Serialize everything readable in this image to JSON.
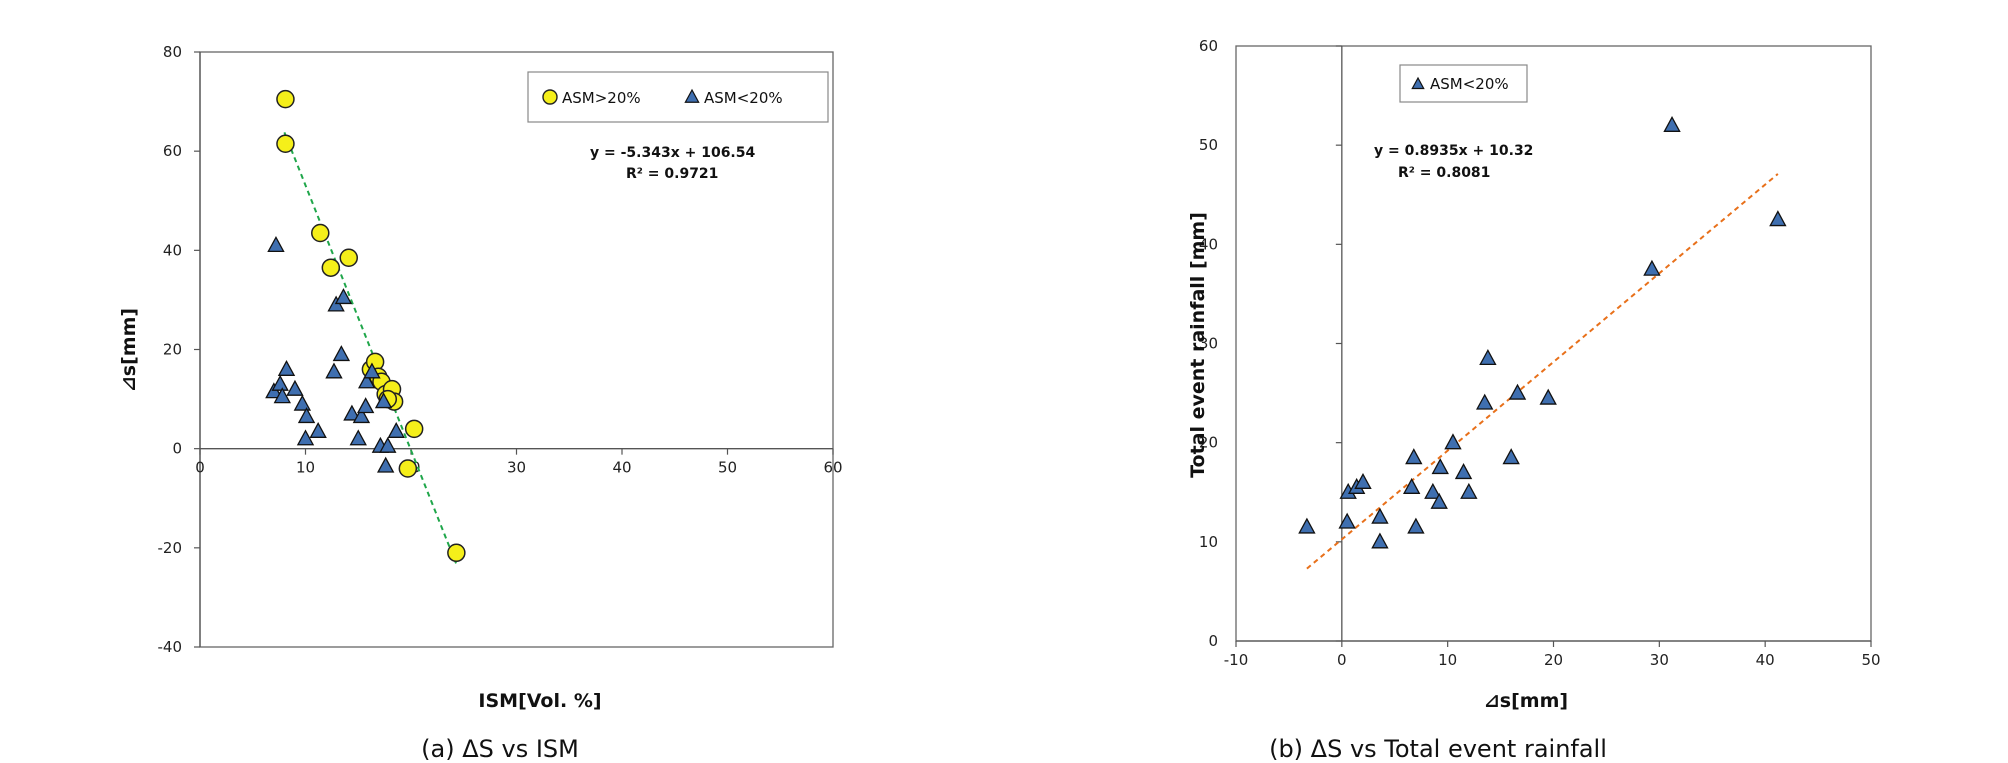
{
  "chart_data": [
    {
      "type": "scatter",
      "caption": "(a) ΔS vs ISM",
      "xlabel": "ISM[Vol. %]",
      "ylabel": "⊿s[mm]",
      "xlim": [
        0,
        60
      ],
      "ylim": [
        -40,
        80
      ],
      "xticks": [
        "0",
        "10",
        "20",
        "30",
        "40",
        "50",
        "60"
      ],
      "yticks": [
        "-40",
        "-20",
        "0",
        "20",
        "40",
        "60",
        "80"
      ],
      "legend": {
        "placement": "top-right",
        "entries": [
          "ASM>20%",
          "ASM<20%"
        ]
      },
      "equation": "y = -5.343x + 106.54",
      "r_squared": "R²   = 0.9721",
      "trendline": {
        "color": "#1fa64a",
        "x": [
          8,
          24.3
        ],
        "y": [
          63.8,
          -23.3
        ]
      },
      "series": [
        {
          "name": "ASM>20%",
          "marker": "circle",
          "color": "#f5ef1a",
          "x": [
            8.1,
            8.1,
            11.4,
            12.4,
            14.1,
            16.2,
            16.6,
            16.9,
            17.2,
            17.6,
            18.2,
            18.4,
            17.8,
            19.7,
            20.3,
            24.3
          ],
          "y": [
            70.5,
            61.5,
            43.5,
            36.5,
            38.5,
            16.0,
            17.5,
            14.5,
            13.5,
            11.0,
            12.0,
            9.5,
            10.0,
            -4.0,
            4.0,
            -21.0
          ]
        },
        {
          "name": "ASM<20%",
          "marker": "triangle",
          "color": "#3f6fb0",
          "x": [
            7.2,
            7.0,
            7.6,
            7.8,
            8.2,
            9.0,
            9.7,
            10.1,
            10.0,
            11.2,
            12.7,
            13.4,
            12.9,
            13.6,
            14.4,
            15.0,
            15.3,
            15.8,
            15.7,
            16.3,
            17.1,
            17.4,
            17.6,
            17.8,
            18.6
          ],
          "y": [
            41.0,
            11.5,
            13.0,
            10.5,
            16.0,
            12.0,
            9.0,
            6.5,
            2.0,
            3.5,
            15.5,
            19.0,
            29.0,
            30.5,
            7.0,
            2.0,
            6.5,
            13.5,
            8.5,
            15.5,
            0.5,
            9.5,
            -3.5,
            0.5,
            3.5
          ]
        }
      ]
    },
    {
      "type": "scatter",
      "caption": "(b) ΔS vs Total event rainfall",
      "xlabel": "⊿s[mm]",
      "ylabel": "Total event  rainfall [mm]",
      "xlim": [
        -10,
        50
      ],
      "ylim": [
        0,
        60
      ],
      "xticks": [
        "-10",
        "0",
        "10",
        "20",
        "30",
        "40",
        "50"
      ],
      "yticks": [
        "0",
        "10",
        "20",
        "30",
        "40",
        "50",
        "60"
      ],
      "legend": {
        "placement": "top-left",
        "entries": [
          "ASM<20%"
        ]
      },
      "equation": "y = 0.8935x + 10.32",
      "r_squared": "R²   = 0.8081",
      "trendline": {
        "color": "#e8701a",
        "x": [
          -3.3,
          41.2
        ],
        "y": [
          7.3,
          47.1
        ]
      },
      "series": [
        {
          "name": "ASM<20%",
          "marker": "triangle",
          "color": "#3f6fb0",
          "x": [
            -3.3,
            0.5,
            0.6,
            1.4,
            2.0,
            3.6,
            3.6,
            6.6,
            6.8,
            7.0,
            8.6,
            9.2,
            9.3,
            10.5,
            11.5,
            12.0,
            13.5,
            13.8,
            16.0,
            16.6,
            19.5,
            29.3,
            31.2,
            41.2
          ],
          "y": [
            11.5,
            12.0,
            15.0,
            15.5,
            16.0,
            12.5,
            10.0,
            15.5,
            18.5,
            11.5,
            15.0,
            14.0,
            17.5,
            20.0,
            17.0,
            15.0,
            24.0,
            28.5,
            18.5,
            25.0,
            24.5,
            37.5,
            52.0,
            42.5
          ]
        }
      ]
    }
  ]
}
